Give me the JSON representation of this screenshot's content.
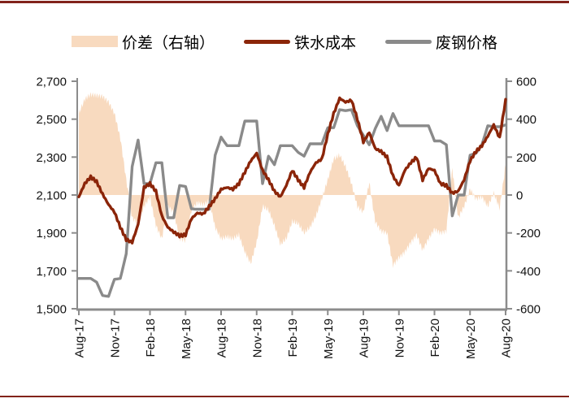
{
  "figure": {
    "border_line_color": "#82231B",
    "background": "#ffffff"
  },
  "legend": {
    "items": [
      {
        "label": "价差（右轴）",
        "type": "area",
        "color": "#F8DABF"
      },
      {
        "label": "铁水成本",
        "type": "line",
        "color": "#8B2509"
      },
      {
        "label": "废钢价格",
        "type": "line",
        "color": "#8A8A8A"
      }
    ]
  },
  "chart_data": {
    "type": "area+line combo",
    "x_description": "time, Aug-2017 to Aug-2020, sampled semi-monthly (73 points)",
    "x_tick_labels": [
      "Aug-17",
      "Nov-17",
      "Feb-18",
      "May-18",
      "Aug-18",
      "Nov-18",
      "Feb-19",
      "May-19",
      "Aug-19",
      "Nov-19",
      "Feb-20",
      "May-20",
      "Aug-20"
    ],
    "left_axis": {
      "min": 1500,
      "max": 2700,
      "step": 200,
      "tick_labels": [
        "2,700",
        "2,500",
        "2,300",
        "2,100",
        "1,900",
        "1,700",
        "1,500"
      ]
    },
    "right_axis": {
      "min": -600,
      "max": 600,
      "step": 200,
      "tick_labels": [
        "600",
        "400",
        "200",
        "0",
        "-200",
        "-400",
        "-600"
      ]
    },
    "grid": false,
    "legend_position": "top-center",
    "axis_color": "#8C8C8C",
    "series": [
      {
        "name": "价差（右轴）",
        "type": "area",
        "axis": "right",
        "color": "#F8DABF",
        "values": [
          430,
          505,
          530,
          525,
          520,
          490,
          430,
          300,
          80,
          -120,
          -150,
          -60,
          -10,
          -160,
          -230,
          -60,
          -90,
          -230,
          -240,
          -80,
          -40,
          -50,
          -30,
          -170,
          -230,
          -220,
          -230,
          -210,
          -300,
          -360,
          -250,
          -60,
          -80,
          -160,
          -260,
          -230,
          -140,
          -150,
          -200,
          -170,
          -110,
          -20,
          80,
          190,
          210,
          150,
          60,
          -60,
          -90,
          65,
          -140,
          -190,
          -200,
          -370,
          -330,
          -300,
          -250,
          -210,
          -290,
          -230,
          -180,
          -200,
          -190,
          140,
          -120,
          -60,
          30,
          -20,
          -10,
          -60,
          10,
          -70,
          160
        ]
      },
      {
        "name": "铁水成本",
        "type": "line",
        "axis": "left",
        "color": "#8B2509",
        "values": [
          2090,
          2160,
          2195,
          2170,
          2105,
          2050,
          2010,
          1930,
          1865,
          1850,
          1945,
          2140,
          2160,
          2120,
          1990,
          1930,
          1905,
          1885,
          1890,
          1975,
          2005,
          2000,
          2040,
          2080,
          2130,
          2140,
          2130,
          2160,
          2220,
          2280,
          2320,
          2230,
          2180,
          2120,
          2090,
          2150,
          2230,
          2180,
          2140,
          2220,
          2270,
          2290,
          2420,
          2530,
          2610,
          2590,
          2600,
          2500,
          2380,
          2430,
          2345,
          2330,
          2300,
          2200,
          2150,
          2230,
          2270,
          2300,
          2180,
          2240,
          2230,
          2160,
          2150,
          2110,
          2120,
          2180,
          2280,
          2330,
          2360,
          2410,
          2470,
          2400,
          2605
        ]
      },
      {
        "name": "废钢价格",
        "type": "line",
        "axis": "left",
        "color": "#8A8A8A",
        "values": [
          1660,
          1660,
          1660,
          1640,
          1570,
          1565,
          1655,
          1660,
          1790,
          2250,
          2390,
          2160,
          2160,
          2270,
          2270,
          1980,
          1980,
          2150,
          2145,
          2027,
          2025,
          2025,
          2025,
          2310,
          2405,
          2360,
          2360,
          2360,
          2490,
          2490,
          2490,
          2160,
          2305,
          2260,
          2360,
          2360,
          2360,
          2325,
          2305,
          2370,
          2370,
          2370,
          2455,
          2455,
          2550,
          2545,
          2550,
          2465,
          2415,
          2365,
          2450,
          2515,
          2440,
          2530,
          2465,
          2465,
          2465,
          2465,
          2465,
          2465,
          2385,
          2385,
          2365,
          1990,
          2100,
          2100,
          2310,
          2320,
          2365,
          2465,
          2460,
          2460,
          2470
        ]
      }
    ]
  }
}
